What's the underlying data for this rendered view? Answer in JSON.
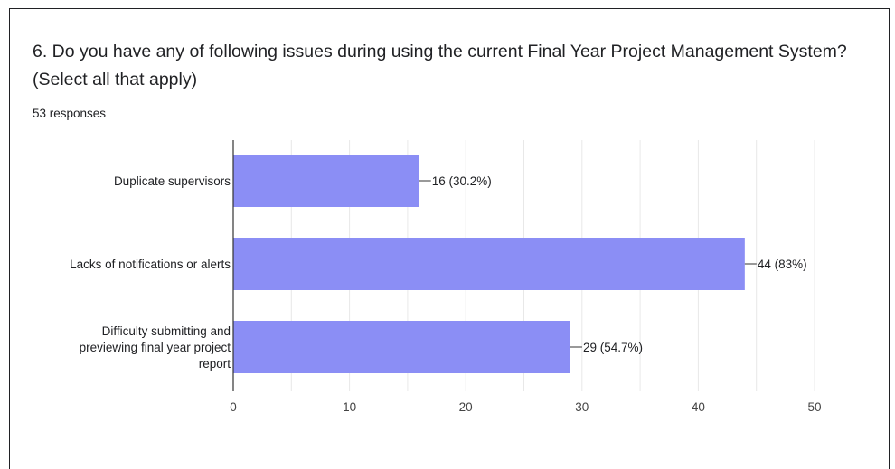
{
  "question": {
    "title": "6. Do you have any of following issues during using the current Final Year Project Management System? (Select all that apply)",
    "responses": "53 responses"
  },
  "colors": {
    "bar": "#8b8ef5",
    "grid": "#e8e8e8",
    "axis": "#333333",
    "text": "#202124"
  },
  "chart_data": {
    "type": "bar",
    "orientation": "horizontal",
    "categories": [
      [
        "Duplicate supervisors"
      ],
      [
        "Lacks of notifications or alerts"
      ],
      [
        "Difficulty submitting and",
        "previewing final year project",
        "report"
      ]
    ],
    "values": [
      16,
      44,
      29
    ],
    "data_labels": [
      "16 (30.2%)",
      "44 (83%)",
      "29 (54.7%)"
    ],
    "xlim": [
      0,
      50
    ],
    "xticks": [
      0,
      10,
      20,
      30,
      40,
      50
    ],
    "grid": true,
    "title": "",
    "xlabel": "",
    "ylabel": ""
  }
}
